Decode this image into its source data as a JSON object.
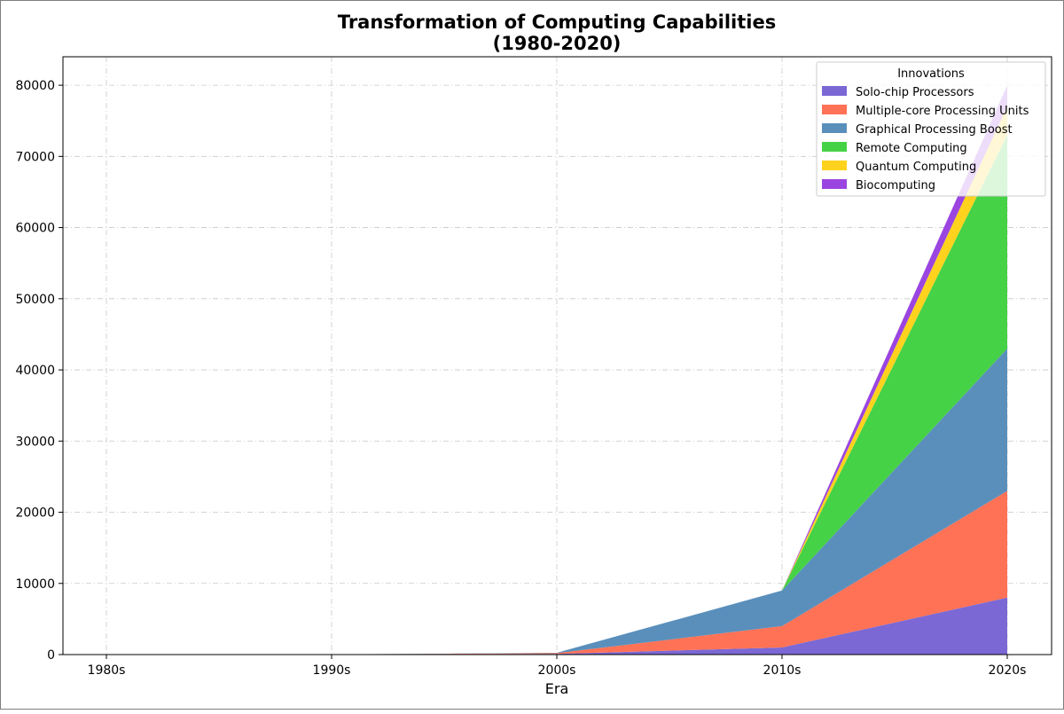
{
  "chart_data": {
    "type": "area",
    "title": "Transformation of Computing Capabilities",
    "subtitle": "(1980-2020)",
    "xlabel": "Era",
    "ylabel": "",
    "categories": [
      "1980s",
      "1990s",
      "2000s",
      "2010s",
      "2020s"
    ],
    "ylim": [
      0,
      84000
    ],
    "yticks": [
      0,
      10000,
      20000,
      30000,
      40000,
      50000,
      60000,
      70000,
      80000
    ],
    "stacked": true,
    "grid": true,
    "legend": {
      "title": "Innovations",
      "placement": "top-right"
    },
    "series": [
      {
        "name": "Solo-chip Processors",
        "color": "#7b68d4",
        "values": [
          0,
          20,
          100,
          1000,
          8000
        ]
      },
      {
        "name": "Multiple-core Processing Units",
        "color": "#ff7256",
        "values": [
          0,
          0,
          100,
          3000,
          15000
        ]
      },
      {
        "name": "Graphical Processing Boost",
        "color": "#5a8fbc",
        "values": [
          0,
          0,
          50,
          5000,
          20000
        ]
      },
      {
        "name": "Remote Computing",
        "color": "#46d246",
        "values": [
          0,
          0,
          0,
          0,
          30000
        ]
      },
      {
        "name": "Quantum Computing",
        "color": "#ffd21e",
        "values": [
          0,
          0,
          0,
          0,
          4000
        ]
      },
      {
        "name": "Biocomputing",
        "color": "#9b45e0",
        "values": [
          0,
          0,
          0,
          0,
          3000
        ]
      }
    ]
  }
}
